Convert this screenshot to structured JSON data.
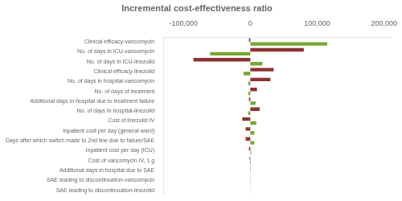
{
  "chart_data": {
    "type": "bar",
    "orientation": "horizontal",
    "title": "Incremental cost-effectiveness ratio",
    "categories": [
      "Clinical efficacy-vancomycin",
      "No. of days in ICU-vancomycin",
      "No. of days in ICU-linezolid",
      "Clinical efficacy-linezolid",
      "No. of days in hospital-vancomycin",
      "No. of days of treatment",
      "Additional days in hospital due to treatment failure",
      "No. of days in hospital-linezolid",
      "Cost of linezolid IV",
      "Inpatient cost per day (general ward)",
      "Days after which switch made to 2nd line due to failure/SAE",
      "Inpatient cost per day (ICU)",
      "Cost of vancomycin IV, 1 g",
      "Additional days in hospital due to SAE",
      "SAE leading to discontinuation-vancomycin",
      "SAE leading to discontinuation-linezolid"
    ],
    "series": [
      {
        "color": "#8b3333",
        "values": [
          -2000,
          80000,
          -85000,
          35000,
          30000,
          10000,
          -2000,
          14000,
          -12000,
          -7000,
          -7000,
          -2000,
          -1000,
          -500,
          -300,
          -200
        ]
      },
      {
        "color": "#77a832",
        "values": [
          115000,
          -60000,
          18000,
          -10000,
          -3000,
          -3000,
          8000,
          -3000,
          9000,
          6000,
          6000,
          1500,
          800,
          400,
          250,
          150
        ]
      }
    ],
    "xlim": [
      -130000,
      210000
    ],
    "xticks": [
      {
        "value": -100000,
        "label": "-100,000"
      },
      0,
      {
        "value": 100000,
        "label": "100,000"
      },
      {
        "value": 200000,
        "label": "200,000"
      }
    ],
    "grid": false
  }
}
